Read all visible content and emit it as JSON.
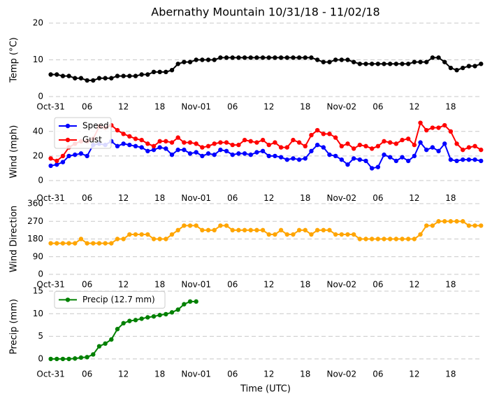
{
  "chart_data": [
    {
      "type": "line",
      "title": "Abernathy Mountain 10/31/18 - 11/02/18",
      "ylabel": "Temp (°C)",
      "x": [
        0,
        1,
        2,
        3,
        4,
        5,
        6,
        7,
        8,
        9,
        10,
        11,
        12,
        13,
        14,
        15,
        16,
        17,
        18,
        19,
        20,
        21,
        22,
        23,
        24,
        25,
        26,
        27,
        28,
        29,
        30,
        31,
        32,
        33,
        34,
        35,
        36,
        37,
        38,
        39,
        40,
        41,
        42,
        43,
        44,
        45,
        46,
        47,
        48,
        49,
        50,
        51,
        52,
        53,
        54,
        55,
        56,
        57,
        58,
        59,
        60,
        61,
        62,
        63,
        64,
        65,
        66,
        67,
        68,
        69,
        70,
        71
      ],
      "xlim": [
        -0.3,
        71.2
      ],
      "xticks": [
        {
          "value": 0,
          "label": "Oct-31"
        },
        {
          "value": 6,
          "label": "06"
        },
        {
          "value": 12,
          "label": "12"
        },
        {
          "value": 18,
          "label": "18"
        },
        {
          "value": 24,
          "label": "Nov-01"
        },
        {
          "value": 30,
          "label": "06"
        },
        {
          "value": 36,
          "label": "12"
        },
        {
          "value": 42,
          "label": "18"
        },
        {
          "value": 48,
          "label": "Nov-02"
        },
        {
          "value": 54,
          "label": "06"
        },
        {
          "value": 60,
          "label": "12"
        },
        {
          "value": 66,
          "label": "18"
        }
      ],
      "ylim": [
        0,
        20
      ],
      "yticks": [
        0,
        10,
        20
      ],
      "grid": true,
      "color": "#000000",
      "values": [
        6,
        6,
        5.6,
        5.6,
        5,
        5,
        4.4,
        4.4,
        5,
        5,
        5,
        5.6,
        5.6,
        5.6,
        5.6,
        6,
        6,
        6.7,
        6.7,
        6.7,
        7.2,
        8.9,
        9.4,
        9.4,
        10,
        10,
        10,
        10,
        10.6,
        10.6,
        10.6,
        10.6,
        10.6,
        10.6,
        10.6,
        10.6,
        10.6,
        10.6,
        10.6,
        10.6,
        10.6,
        10.6,
        10.6,
        10.6,
        10,
        9.4,
        9.4,
        10,
        10,
        10,
        9.4,
        8.9,
        8.9,
        8.9,
        8.9,
        8.9,
        8.9,
        8.9,
        8.9,
        8.9,
        9.4,
        9.4,
        9.4,
        10.6,
        10.6,
        9.4,
        7.8,
        7.2,
        7.8,
        8.3,
        8.3,
        8.9
      ]
    },
    {
      "type": "line",
      "ylabel": "Wind (mph)",
      "x": [
        0,
        1,
        2,
        3,
        4,
        5,
        6,
        7,
        8,
        9,
        10,
        11,
        12,
        13,
        14,
        15,
        16,
        17,
        18,
        19,
        20,
        21,
        22,
        23,
        24,
        25,
        26,
        27,
        28,
        29,
        30,
        31,
        32,
        33,
        34,
        35,
        36,
        37,
        38,
        39,
        40,
        41,
        42,
        43,
        44,
        45,
        46,
        47,
        48,
        49,
        50,
        51,
        52,
        53,
        54,
        55,
        56,
        57,
        58,
        59,
        60,
        61,
        62,
        63,
        64,
        65,
        66,
        67,
        68,
        69,
        70,
        71
      ],
      "xlim": [
        -0.3,
        71.2
      ],
      "xticks": [
        {
          "value": 0,
          "label": "Oct-31"
        },
        {
          "value": 6,
          "label": "06"
        },
        {
          "value": 12,
          "label": "12"
        },
        {
          "value": 18,
          "label": "18"
        },
        {
          "value": 24,
          "label": "Nov-01"
        },
        {
          "value": 30,
          "label": "06"
        },
        {
          "value": 36,
          "label": "12"
        },
        {
          "value": 42,
          "label": "18"
        },
        {
          "value": 48,
          "label": "Nov-02"
        },
        {
          "value": 54,
          "label": "06"
        },
        {
          "value": 60,
          "label": "12"
        },
        {
          "value": 66,
          "label": "18"
        }
      ],
      "ylim": [
        -6,
        53
      ],
      "yticks": [
        0,
        20,
        40
      ],
      "grid": true,
      "legend": "upper left",
      "series": [
        {
          "name": "Speed",
          "color": "#0000ff",
          "values": [
            12,
            13,
            15,
            20,
            21,
            22,
            20,
            29,
            30,
            29,
            32,
            28,
            30,
            29,
            28,
            27,
            24,
            25,
            27,
            26,
            21,
            25,
            25,
            22,
            23,
            20,
            22,
            21,
            25,
            24,
            21,
            22,
            22,
            21,
            23,
            24,
            20,
            20,
            19,
            17,
            18,
            17,
            18,
            24,
            29,
            27,
            21,
            20,
            17,
            13,
            18,
            17,
            16,
            10,
            11,
            21,
            19,
            16,
            19,
            16,
            20,
            31,
            25,
            27,
            24,
            30,
            17,
            16,
            17,
            17,
            17,
            16
          ]
        },
        {
          "name": "Gust",
          "color": "#ff0000",
          "values": [
            18,
            16,
            20,
            27,
            30,
            32,
            32,
            34,
            44,
            43,
            45,
            41,
            38,
            36,
            34,
            33,
            30,
            28,
            32,
            32,
            31,
            35,
            31,
            31,
            30,
            27,
            28,
            30,
            31,
            31,
            29,
            29,
            33,
            32,
            31,
            33,
            29,
            31,
            27,
            27,
            33,
            31,
            28,
            37,
            41,
            38,
            38,
            35,
            28,
            30,
            26,
            29,
            28,
            26,
            28,
            32,
            31,
            30,
            33,
            34,
            29,
            47,
            41,
            43,
            43,
            45,
            40,
            30,
            25,
            27,
            28,
            25
          ]
        }
      ]
    },
    {
      "type": "line",
      "ylabel": "Wind Direction",
      "x": [
        0,
        1,
        2,
        3,
        4,
        5,
        6,
        7,
        8,
        9,
        10,
        11,
        12,
        13,
        14,
        15,
        16,
        17,
        18,
        19,
        20,
        21,
        22,
        23,
        24,
        25,
        26,
        27,
        28,
        29,
        30,
        31,
        32,
        33,
        34,
        35,
        36,
        37,
        38,
        39,
        40,
        41,
        42,
        43,
        44,
        45,
        46,
        47,
        48,
        49,
        50,
        51,
        52,
        53,
        54,
        55,
        56,
        57,
        58,
        59,
        60,
        61,
        62,
        63,
        64,
        65,
        66,
        67,
        68,
        69,
        70,
        71
      ],
      "xlim": [
        -0.3,
        71.2
      ],
      "xticks": [
        {
          "value": 0,
          "label": "Oct-31"
        },
        {
          "value": 6,
          "label": "06"
        },
        {
          "value": 12,
          "label": "12"
        },
        {
          "value": 18,
          "label": "18"
        },
        {
          "value": 24,
          "label": "Nov-01"
        },
        {
          "value": 30,
          "label": "06"
        },
        {
          "value": 36,
          "label": "12"
        },
        {
          "value": 42,
          "label": "18"
        },
        {
          "value": 48,
          "label": "Nov-02"
        },
        {
          "value": 54,
          "label": "06"
        },
        {
          "value": 60,
          "label": "12"
        },
        {
          "value": 66,
          "label": "18"
        }
      ],
      "ylim": [
        0,
        360
      ],
      "yticks": [
        0,
        90,
        180,
        270,
        360
      ],
      "grid": true,
      "color": "#ffa500",
      "values": [
        158,
        158,
        158,
        158,
        158,
        180,
        158,
        158,
        158,
        158,
        158,
        180,
        180,
        203,
        203,
        203,
        203,
        180,
        180,
        180,
        203,
        225,
        248,
        248,
        248,
        225,
        225,
        225,
        248,
        248,
        225,
        225,
        225,
        225,
        225,
        225,
        203,
        203,
        225,
        203,
        203,
        225,
        225,
        203,
        225,
        225,
        225,
        203,
        203,
        203,
        203,
        180,
        180,
        180,
        180,
        180,
        180,
        180,
        180,
        180,
        180,
        203,
        248,
        248,
        270,
        270,
        270,
        270,
        270,
        248,
        248,
        248
      ]
    },
    {
      "type": "line",
      "ylabel": "Precip (mm)",
      "xlabel": "Time (UTC)",
      "x": [
        0,
        1,
        2,
        3,
        4,
        5,
        6,
        7,
        8,
        9,
        10,
        11,
        12,
        13,
        14,
        15,
        16,
        17,
        18,
        19,
        20,
        21,
        22,
        23,
        24,
        25,
        26,
        27,
        28,
        29,
        30,
        31,
        32,
        33,
        34,
        35,
        36,
        37,
        38,
        39,
        40,
        41,
        42,
        43,
        44,
        45,
        46,
        47,
        48,
        49,
        50,
        51,
        52,
        53,
        54,
        55,
        56,
        57,
        58,
        59,
        60,
        61,
        62,
        63,
        64,
        65,
        66,
        67,
        68,
        69,
        70,
        71
      ],
      "xlim": [
        -0.3,
        71.2
      ],
      "xticks": [
        {
          "value": 0,
          "label": "Oct-31"
        },
        {
          "value": 6,
          "label": "06"
        },
        {
          "value": 12,
          "label": "12"
        },
        {
          "value": 18,
          "label": "18"
        },
        {
          "value": 24,
          "label": "Nov-01"
        },
        {
          "value": 30,
          "label": "06"
        },
        {
          "value": 36,
          "label": "12"
        },
        {
          "value": 42,
          "label": "18"
        },
        {
          "value": 48,
          "label": "Nov-02"
        },
        {
          "value": 54,
          "label": "06"
        },
        {
          "value": 60,
          "label": "12"
        },
        {
          "value": 66,
          "label": "18"
        }
      ],
      "ylim": [
        -1.1,
        15.4
      ],
      "yticks": [
        0,
        5,
        10,
        15
      ],
      "grid": true,
      "legend": "upper left",
      "series": [
        {
          "name": "Precip (12.7 mm)",
          "color": "#008000",
          "values": [
            0,
            0,
            0,
            0,
            0.1,
            0.3,
            0.4,
            1,
            2.8,
            3.4,
            4.3,
            6.6,
            7.9,
            8.4,
            8.6,
            8.9,
            9.2,
            9.4,
            9.7,
            9.9,
            10.3,
            10.9,
            12.1,
            12.7,
            12.7,
            null,
            null,
            null,
            null,
            null,
            null,
            null,
            null,
            null,
            null,
            null,
            null,
            null,
            null,
            null,
            null,
            null,
            null,
            null,
            null,
            null,
            null,
            null,
            null,
            null,
            null,
            null,
            null,
            null,
            null,
            null,
            null,
            null,
            null,
            null,
            null,
            null,
            null,
            null,
            null,
            null,
            null,
            null,
            null,
            null,
            null,
            null
          ]
        }
      ]
    }
  ]
}
